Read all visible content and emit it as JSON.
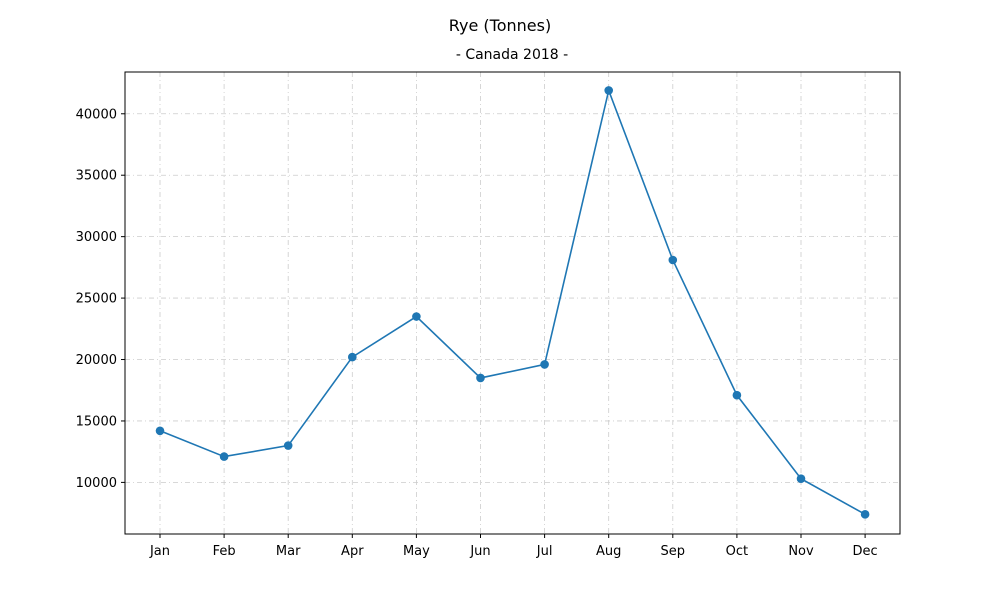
{
  "chart_data": {
    "type": "line",
    "title": "Rye (Tonnes)",
    "subtitle": "- Canada 2018 -",
    "xlabel": "",
    "ylabel": "",
    "categories": [
      "Jan",
      "Feb",
      "Mar",
      "Apr",
      "May",
      "Jun",
      "Jul",
      "Aug",
      "Sep",
      "Oct",
      "Nov",
      "Dec"
    ],
    "series": [
      {
        "values": [
          14200,
          12100,
          13000,
          20200,
          23500,
          18500,
          19600,
          41900,
          28100,
          17100,
          10300,
          7400
        ],
        "color": "#1f77b4"
      }
    ],
    "ylim": [
      5800,
      43400
    ],
    "yticks": [
      10000,
      15000,
      20000,
      25000,
      30000,
      35000,
      40000
    ],
    "grid": true,
    "markers": "circle"
  }
}
